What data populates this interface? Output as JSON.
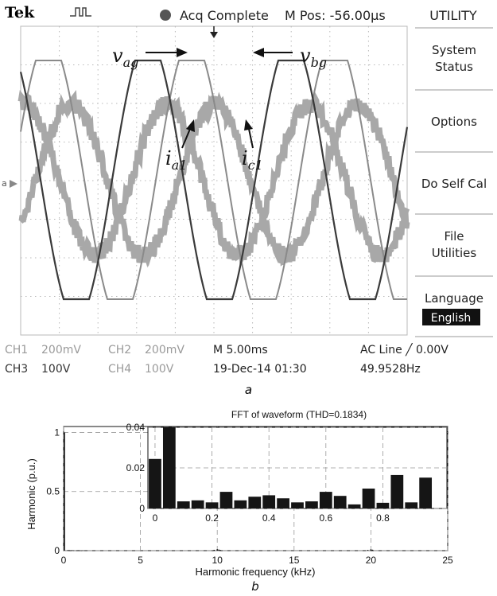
{
  "scope": {
    "brand": "Tek",
    "status": "Acq Complete",
    "mpos": "M Pos: -56.00µs",
    "trigger_marker_label": "a",
    "menu": {
      "title": "UTILITY",
      "items": [
        {
          "line1": "System",
          "line2": "Status"
        },
        {
          "line1": "Options",
          "line2": ""
        },
        {
          "line1": "Do Self Cal",
          "line2": ""
        },
        {
          "line1": "File",
          "line2": "Utilities"
        }
      ],
      "language_label": "Language",
      "language_value": "English"
    },
    "annotations": {
      "vag": "v",
      "vag_sub": "ag",
      "vbg": "v",
      "vbg_sub": "bg",
      "ia1": "i",
      "ia1_sub": "a1",
      "ic1": "i",
      "ic1_sub": "c1"
    },
    "readouts": {
      "ch1": "CH1",
      "ch1_scale": "200mV",
      "ch2": "CH2",
      "ch2_scale": "200mV",
      "ch3": "CH3",
      "ch3_scale": "100V",
      "ch4": "CH4",
      "ch4_scale": "100V",
      "time_div": "M 5.00ms",
      "date": "19-Dec-14 01:30",
      "trigger": "AC Line ╱ 0.00V",
      "frequency": "49.9528Hz"
    },
    "caption": "a",
    "colors": {
      "screen": "#ffffff",
      "trace_voltage": "#4a4a4a",
      "trace_current": "#a0a0a0",
      "grid": "#b8b8b8",
      "menu_bg": "#ffffff"
    }
  },
  "fft": {
    "caption": "b",
    "chart_data": {
      "type": "bar",
      "title": "FFT of waveform (THD=0.1834)",
      "xlabel": "Harmonic frequency (kHz)",
      "ylabel": "Harmonic (p.u.)",
      "xlim": [
        0,
        25
      ],
      "ylim": [
        0,
        1.05
      ],
      "x_ticks": [
        "0",
        "5",
        "10",
        "15",
        "20",
        "25"
      ],
      "y_ticks": [
        "0",
        "0.5",
        "1"
      ],
      "main_series": {
        "x": [
          0.05,
          0.25,
          0.35,
          0.55,
          0.65,
          0.85,
          0.95,
          1.05,
          1.15,
          1.25,
          9.8,
          10.0,
          10.1,
          10.2,
          19.8,
          20.0,
          20.1
        ],
        "values": [
          1.0,
          0.004,
          0.005,
          0.004,
          0.003,
          0.003,
          0.004,
          0.003,
          0.002,
          0.003,
          0.007,
          0.012,
          0.009,
          0.006,
          0.006,
          0.011,
          0.008
        ]
      },
      "inset": {
        "xlim": [
          -0.025,
          1.025
        ],
        "ylim": [
          0,
          0.04
        ],
        "x_ticks": [
          "0",
          "0.2",
          "0.4",
          "0.6",
          "0.8"
        ],
        "y_ticks": [
          "0",
          "0.02",
          "0.04"
        ],
        "x": [
          0.0,
          0.05,
          0.1,
          0.15,
          0.2,
          0.25,
          0.3,
          0.35,
          0.4,
          0.45,
          0.5,
          0.55,
          0.6,
          0.65,
          0.7,
          0.75,
          0.8,
          0.85,
          0.9,
          0.95,
          1.0
        ],
        "values": [
          0.0244,
          0.04,
          0.0035,
          0.004,
          0.003,
          0.0082,
          0.004,
          0.0058,
          0.0065,
          0.005,
          0.003,
          0.0035,
          0.0082,
          0.0062,
          0.002,
          0.0098,
          0.0028,
          0.0165,
          0.003,
          0.0152,
          0.0
        ]
      },
      "grid": true
    }
  }
}
